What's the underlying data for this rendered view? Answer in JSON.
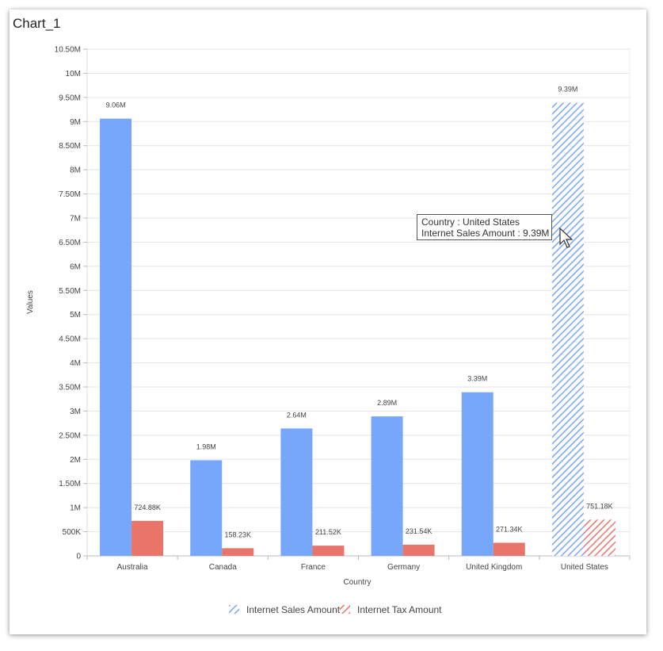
{
  "panel": {
    "title": "Chart_1"
  },
  "chart_data": {
    "type": "bar",
    "categories": [
      "Australia",
      "Canada",
      "France",
      "Germany",
      "United Kingdom",
      "United States"
    ],
    "series": [
      {
        "name": "Internet Sales Amount",
        "values": [
          9060000,
          1980000,
          2640000,
          2890000,
          3390000,
          9390000
        ],
        "labels": [
          "9.06M",
          "1.98M",
          "2.64M",
          "2.89M",
          "3.39M",
          "9.39M"
        ],
        "color": "#76a7fa"
      },
      {
        "name": "Internet Tax Amount",
        "values": [
          724880,
          158230,
          211520,
          231540,
          271340,
          751180
        ],
        "labels": [
          "724.88K",
          "158.23K",
          "211.52K",
          "231.54K",
          "271.34K",
          "751.18K"
        ],
        "color": "#e8746a"
      }
    ],
    "highlighted_category": "United States",
    "yticks": [
      {
        "v": 0,
        "label": "0"
      },
      {
        "v": 500000,
        "label": "500K"
      },
      {
        "v": 1000000,
        "label": "1M"
      },
      {
        "v": 1500000,
        "label": "1.50M"
      },
      {
        "v": 2000000,
        "label": "2M"
      },
      {
        "v": 2500000,
        "label": "2.50M"
      },
      {
        "v": 3000000,
        "label": "3M"
      },
      {
        "v": 3500000,
        "label": "3.50M"
      },
      {
        "v": 4000000,
        "label": "4M"
      },
      {
        "v": 4500000,
        "label": "4.50M"
      },
      {
        "v": 5000000,
        "label": "5M"
      },
      {
        "v": 5500000,
        "label": "5.50M"
      },
      {
        "v": 6000000,
        "label": "6M"
      },
      {
        "v": 6500000,
        "label": "6.50M"
      },
      {
        "v": 7000000,
        "label": "7M"
      },
      {
        "v": 7500000,
        "label": "7.50M"
      },
      {
        "v": 8000000,
        "label": "8M"
      },
      {
        "v": 8500000,
        "label": "8.50M"
      },
      {
        "v": 9000000,
        "label": "9M"
      },
      {
        "v": 9500000,
        "label": "9.50M"
      },
      {
        "v": 10000000,
        "label": "10M"
      },
      {
        "v": 10500000,
        "label": "10.50M"
      }
    ],
    "ylim": [
      0,
      10500000
    ],
    "xlabel": "Country",
    "ylabel": "Values",
    "grid": true,
    "legend": "bottom-center"
  },
  "tooltip": {
    "line1": "Country : United States",
    "line2": "Internet Sales Amount : 9.39M"
  }
}
